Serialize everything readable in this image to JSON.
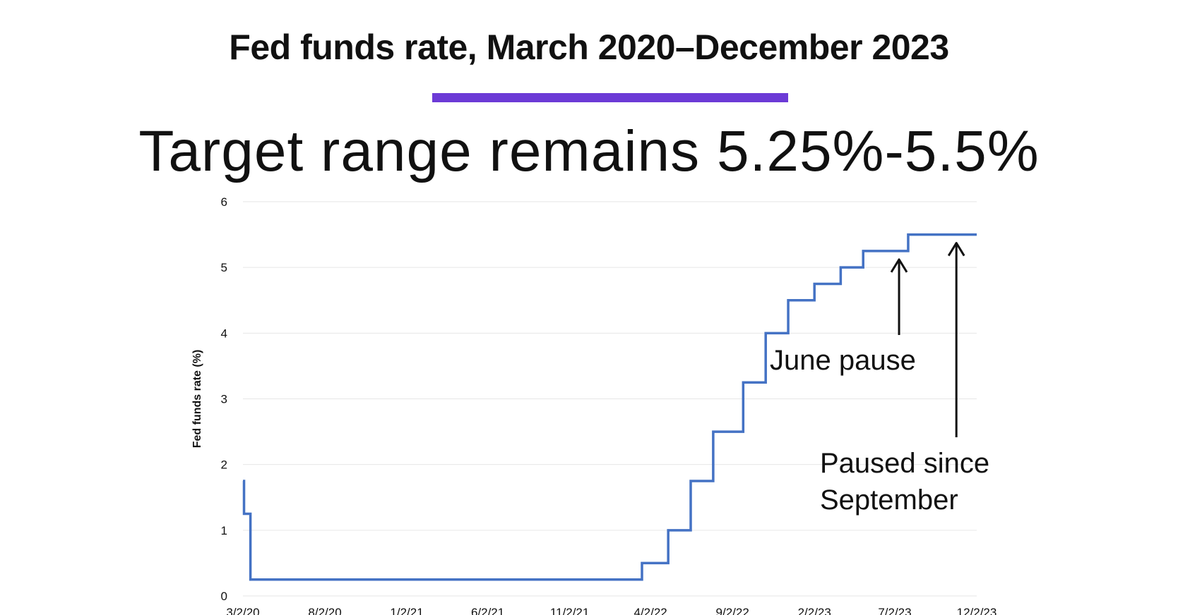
{
  "header": {
    "title": "Fed funds rate, March 2020–December 2023",
    "subtitle": "Target range remains 5.25%-5.5%"
  },
  "colors": {
    "accent_bar": "#6c3ad6",
    "series_line": "#4472c4",
    "grid": "#e6e6e6",
    "arrow": "#111111"
  },
  "chart_data": {
    "type": "line",
    "title": "Fed funds rate, March 2020–December 2023",
    "subtitle": "Target range remains 5.25%-5.5%",
    "xlabel": "",
    "ylabel": "Fed funds rate (%)",
    "ylim": [
      0,
      6
    ],
    "yticks": [
      0,
      1,
      2,
      3,
      4,
      5,
      6
    ],
    "xlim": [
      "2020-03-02",
      "2023-12-02"
    ],
    "xtick_labels": [
      "3/2/20",
      "8/2/20",
      "1/2/21",
      "6/2/21",
      "11/2/21",
      "4/2/22",
      "9/2/22",
      "2/2/23",
      "7/2/23",
      "12/2/23"
    ],
    "xtick_dates": [
      "2020-03-02",
      "2020-08-02",
      "2021-01-02",
      "2021-06-02",
      "2021-11-02",
      "2022-04-02",
      "2022-09-02",
      "2023-02-02",
      "2023-07-02",
      "2023-12-02"
    ],
    "grid": true,
    "legend": "none",
    "step": true,
    "series": [
      {
        "x": [
          "2020-03-02",
          "2020-03-04",
          "2020-03-16",
          "2022-03-17",
          "2022-05-05",
          "2022-06-16",
          "2022-07-28",
          "2022-09-22",
          "2022-11-03",
          "2022-12-15",
          "2023-02-02",
          "2023-03-23",
          "2023-05-04",
          "2023-07-27",
          "2023-12-02"
        ],
        "y": [
          1.75,
          1.25,
          0.25,
          0.5,
          1.0,
          1.75,
          2.5,
          3.25,
          4.0,
          4.5,
          4.75,
          5.0,
          5.25,
          5.5,
          5.5
        ]
      }
    ],
    "annotations": [
      {
        "text": "June pause",
        "arrow_to": {
          "x": "2023-07-10",
          "y": 5.25
        }
      },
      {
        "text_lines": [
          "Paused since",
          "September"
        ],
        "arrow_to": {
          "x": "2023-10-25",
          "y": 5.5
        }
      }
    ]
  }
}
